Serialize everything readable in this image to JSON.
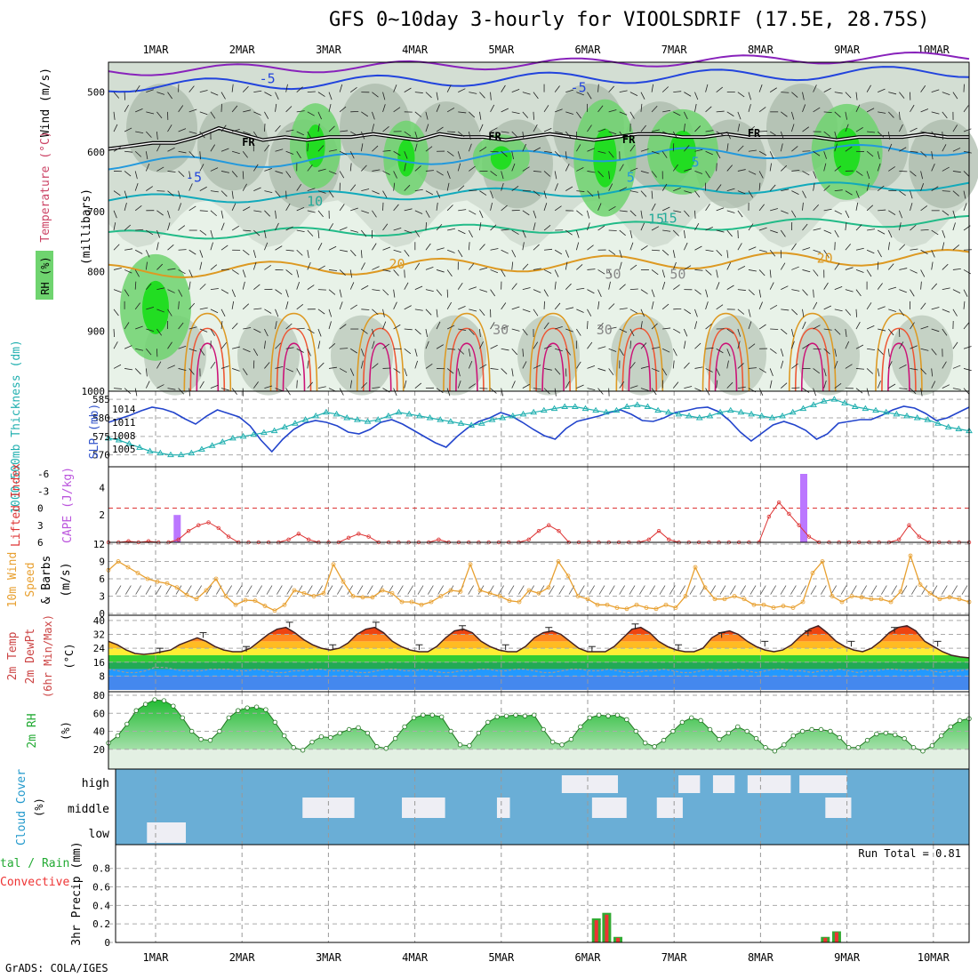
{
  "title": "GFS 0~10day 3-hourly for VIOOLSDRIF (17.5E, 28.75S)",
  "credit": "GrADS: COLA/IGES",
  "dates": [
    "1MAR",
    "2MAR",
    "3MAR",
    "4MAR",
    "5MAR",
    "6MAR",
    "7MAR",
    "8MAR",
    "9MAR",
    "10MAR"
  ],
  "colors": {
    "rh_dark": "#a8b8a8",
    "rh_mid": "#d0dcd0",
    "rh_light": "#e8f2e8",
    "rh_green": "#6fd46f",
    "rh_bright": "#22dd22",
    "slp": "#2244cc",
    "thickness": "#22b0b0",
    "cape": "#bb77ff",
    "lifted": "#dd3333",
    "wind": "#e8a030",
    "cloud_bg": "#6aaed6",
    "cloud_patch": "#eeeef4",
    "rain_total": "#33aa33",
    "rain_conv": "#ee3333"
  },
  "chart_data": [
    {
      "type": "heatmap",
      "name": "upper-air cross section",
      "ylabel": "(millibars)",
      "side_labels": [
        "Wind (m/s)",
        "Temperature (°C)",
        "RH (%)"
      ],
      "yticks": [
        500,
        600,
        700,
        800,
        900,
        1000
      ],
      "ylim": [
        450,
        1000
      ],
      "isotherm_labels": [
        "-5",
        "-5",
        "-5",
        "5",
        "5",
        "10",
        "15",
        "15",
        "20",
        "20",
        "FR",
        "FR",
        "FR",
        "FR",
        "30",
        "30",
        "50",
        "50"
      ],
      "freezing_level_mb": [
        595,
        590,
        585,
        585,
        575,
        560,
        570,
        580,
        575,
        580,
        575,
        575,
        570,
        575,
        580,
        570,
        575,
        575,
        580,
        575,
        570,
        575,
        580,
        575,
        570,
        570,
        575,
        575,
        570,
        575,
        575,
        575,
        575,
        580,
        575,
        575,
        575,
        570,
        575,
        575
      ]
    },
    {
      "type": "line",
      "ylabel_left": "1000-500mb Thickness (dm)",
      "ylabel_right": "SLP (mb)",
      "left_ticks": [
        570,
        575,
        580,
        585
      ],
      "right_ticks": [
        1005,
        1008,
        1011,
        1014
      ],
      "series": [
        {
          "name": "SLP",
          "axis": "right",
          "values": [
            1011,
            1011.8,
            1012.6,
            1013.6,
            1014.4,
            1014,
            1013.2,
            1011.8,
            1010.6,
            1012.4,
            1013.8,
            1013,
            1012.2,
            1010.2,
            1007,
            1004.4,
            1007.2,
            1009.4,
            1010.8,
            1011.4,
            1011,
            1010.2,
            1008.8,
            1008.4,
            1009.4,
            1011,
            1011.6,
            1010.6,
            1009.2,
            1007.8,
            1006.4,
            1005.4,
            1007.8,
            1009.8,
            1011.2,
            1012,
            1013.2,
            1012.4,
            1011,
            1009.4,
            1008,
            1007.2,
            1009.6,
            1011.2,
            1011.8,
            1012.4,
            1013.2,
            1013.8,
            1012.8,
            1011.4,
            1011.2,
            1012,
            1013.2,
            1013.6,
            1014.2,
            1014.4,
            1013.4,
            1011.4,
            1008.8,
            1006.8,
            1008.6,
            1010.4,
            1011.2,
            1010.4,
            1009.2,
            1007.2,
            1008.4,
            1010.8,
            1011.2,
            1011.6,
            1011.6,
            1012.6,
            1013.8,
            1014.6,
            1014.2,
            1013,
            1011.4,
            1012,
            1013.2,
            1014.4
          ]
        },
        {
          "name": "Thickness",
          "axis": "left",
          "values": [
            574.5,
            574,
            573,
            572,
            571,
            570.5,
            570,
            570,
            570.5,
            571.5,
            572.5,
            573.5,
            574.5,
            575,
            575.5,
            576,
            576.5,
            577.5,
            578.5,
            579.5,
            580.5,
            581.5,
            581,
            580,
            579.5,
            579,
            579.5,
            580.5,
            581.5,
            581,
            580.5,
            580,
            579.5,
            579,
            578.5,
            578,
            578.5,
            579.5,
            580,
            580.5,
            581,
            581.5,
            582,
            582.5,
            583,
            583,
            582.5,
            582,
            581.5,
            582,
            583,
            583.5,
            583,
            582,
            581.5,
            581,
            580.5,
            580,
            580.5,
            581.5,
            582,
            581.5,
            581,
            580.5,
            580,
            580.5,
            581.5,
            582.5,
            583.5,
            584.5,
            585,
            584,
            583,
            582.5,
            582,
            581.5,
            581,
            580.5,
            580,
            579.5,
            578.5,
            577.5,
            577,
            576.5
          ]
        }
      ]
    },
    {
      "type": "bar",
      "ylabel_left": "Lifted Index",
      "ylabel_right": "CAPE (J/kg)",
      "left_ticks": [
        -6,
        -3,
        0,
        3,
        6
      ],
      "right_ticks": [
        2,
        4
      ],
      "cape_events": [
        {
          "day": 1.25,
          "value": 2.0
        },
        {
          "day": 8.5,
          "value": 5.0
        }
      ],
      "lifted_index": [
        6,
        6,
        5.8,
        6,
        5.8,
        6,
        6,
        5.5,
        4,
        3,
        2.5,
        3.5,
        5,
        6,
        6,
        6,
        6,
        6,
        5.5,
        4.5,
        5.5,
        6,
        6,
        6,
        5.2,
        4.5,
        5,
        6,
        6,
        6,
        6,
        6,
        6,
        5.5,
        6,
        6,
        6,
        6,
        6,
        6,
        6,
        6,
        5.5,
        4,
        3,
        4,
        6,
        6,
        6,
        6,
        6,
        6,
        6,
        6,
        5.5,
        4,
        5.5,
        6,
        6,
        6,
        6,
        6,
        6,
        6,
        6,
        6,
        1.5,
        -1,
        1,
        3,
        5,
        6,
        6,
        6,
        6,
        6,
        6,
        6,
        6,
        5.5,
        3,
        5,
        6,
        6,
        6,
        6,
        6
      ]
    },
    {
      "type": "line",
      "ylabel": "10m Wind Speed (m/s) & Barbs",
      "ylim": [
        0,
        12
      ],
      "yticks": [
        0,
        3,
        6,
        9,
        12
      ],
      "series": [
        {
          "name": "10m Wind Speed",
          "values": [
            7.5,
            9,
            8,
            7,
            6,
            5.5,
            5.2,
            4.5,
            3.2,
            2.5,
            4,
            6,
            3,
            1.5,
            2.3,
            2.2,
            1.3,
            0.5,
            1.5,
            4,
            3.5,
            3,
            3.5,
            8.5,
            5.5,
            3,
            2.8,
            2.8,
            4,
            3.5,
            2,
            2,
            1.5,
            2,
            3,
            4,
            3.8,
            8.5,
            4,
            3.5,
            3,
            2.2,
            2,
            4,
            3.5,
            4.5,
            9,
            6.5,
            3,
            2.5,
            1.5,
            1.5,
            1,
            0.8,
            1.5,
            1,
            0.8,
            1.5,
            1,
            3,
            8,
            4.5,
            2.5,
            2.5,
            3,
            2.5,
            1.5,
            1.5,
            1,
            1.3,
            1,
            2,
            7,
            9,
            3,
            2,
            3,
            2.8,
            2.5,
            2.5,
            2,
            3.8,
            10,
            5,
            3.5,
            2.5,
            2.8,
            2.5,
            2
          ]
        }
      ]
    },
    {
      "type": "area",
      "ylabel": "2m Temp 2m DewPt (6hr Min/Max) (°C)",
      "ylim": [
        0,
        40
      ],
      "yticks": [
        8,
        16,
        24,
        32,
        40
      ],
      "series": [
        {
          "name": "2m Temp",
          "values": [
            28,
            26,
            23,
            21,
            20.5,
            21,
            22,
            23,
            26,
            28,
            30,
            28,
            25,
            23,
            22,
            22,
            24,
            28,
            32,
            35,
            36,
            33,
            29,
            26,
            24,
            23,
            24,
            27,
            32,
            35,
            36,
            33,
            28,
            25,
            23,
            22,
            22,
            25,
            30,
            34,
            35,
            33,
            28,
            25,
            23,
            22,
            22,
            25,
            30,
            33,
            34,
            32,
            28,
            24,
            22,
            22,
            22,
            25,
            30,
            35,
            36,
            33,
            28,
            25,
            23,
            22,
            22,
            24,
            30,
            33,
            34,
            32,
            28,
            25,
            23,
            22,
            23,
            26,
            31,
            35,
            37,
            33,
            28,
            25,
            23,
            22,
            24,
            28,
            33,
            36,
            37,
            34,
            28,
            25,
            22,
            20,
            19,
            18.5
          ]
        },
        {
          "name": "2m DewPt",
          "values": [
            12,
            11,
            10,
            10,
            11,
            13,
            13,
            12,
            11,
            11,
            11,
            12,
            12,
            12,
            11,
            11,
            12,
            11,
            10,
            10,
            11,
            11,
            12,
            12,
            11,
            11,
            11,
            10,
            10,
            11,
            12,
            12,
            11,
            11,
            12,
            11,
            10,
            10,
            11,
            11,
            12,
            12,
            11,
            11,
            12,
            12,
            11,
            10,
            10,
            11,
            12,
            12,
            11,
            11,
            12,
            11,
            10,
            10,
            11,
            11,
            12,
            11,
            10,
            10,
            11,
            12,
            11,
            11,
            12,
            11,
            10,
            11,
            12,
            12,
            11,
            11,
            10,
            11,
            11,
            12,
            11,
            10,
            11,
            11,
            12,
            12,
            11,
            11,
            12,
            11,
            10,
            11,
            11,
            12
          ]
        }
      ]
    },
    {
      "type": "area",
      "ylabel": "2m RH (%)",
      "ylim": [
        0,
        80
      ],
      "yticks": [
        20,
        40,
        60,
        80
      ],
      "series": [
        {
          "name": "2m RH",
          "values": [
            27,
            35,
            48,
            63,
            70,
            75,
            74,
            68,
            55,
            40,
            31,
            30,
            40,
            55,
            63,
            66,
            67,
            64,
            50,
            35,
            22,
            19,
            28,
            34,
            33,
            38,
            42,
            44,
            38,
            23,
            21,
            32,
            45,
            55,
            58,
            58,
            56,
            40,
            25,
            24,
            38,
            50,
            56,
            57,
            58,
            57,
            58,
            42,
            28,
            25,
            31,
            45,
            55,
            58,
            57,
            58,
            53,
            40,
            27,
            23,
            30,
            40,
            50,
            55,
            52,
            42,
            31,
            38,
            45,
            40,
            32,
            22,
            18,
            25,
            35,
            40,
            42,
            42,
            40,
            33,
            22,
            22,
            30,
            37,
            38,
            36,
            32,
            22,
            18,
            24,
            35,
            45,
            52,
            54
          ]
        }
      ]
    },
    {
      "type": "heatmap",
      "ylabel": "Cloud Cover (%)",
      "levels": [
        "high",
        "middle",
        "low"
      ],
      "patches": [
        {
          "level": "low",
          "start": 0.9,
          "end": 1.35
        },
        {
          "level": "middle",
          "start": 2.7,
          "end": 3.3
        },
        {
          "level": "middle",
          "start": 3.85,
          "end": 4.35
        },
        {
          "level": "middle",
          "start": 4.95,
          "end": 5.1
        },
        {
          "level": "high",
          "start": 5.7,
          "end": 6.35
        },
        {
          "level": "middle",
          "start": 6.05,
          "end": 6.45
        },
        {
          "level": "middle",
          "start": 6.8,
          "end": 7.1
        },
        {
          "level": "high",
          "start": 7.05,
          "end": 7.3
        },
        {
          "level": "high",
          "start": 7.45,
          "end": 7.7
        },
        {
          "level": "high",
          "start": 7.85,
          "end": 8.35
        },
        {
          "level": "high",
          "start": 8.45,
          "end": 9.0
        },
        {
          "level": "middle",
          "start": 8.75,
          "end": 9.05
        }
      ]
    },
    {
      "type": "bar",
      "ylabel_left": "Total / Rain Convective",
      "ylabel": "3hr Precip (mm)",
      "ylim": [
        0,
        1
      ],
      "yticks": [
        0,
        0.2,
        0.4,
        0.6,
        0.8
      ],
      "run_total_label": "Run Total = 0.81",
      "series": [
        {
          "name": "Total",
          "bars": [
            {
              "day": 6.1,
              "value": 0.26
            },
            {
              "day": 6.22,
              "value": 0.32
            },
            {
              "day": 6.35,
              "value": 0.06
            },
            {
              "day": 8.75,
              "value": 0.06
            },
            {
              "day": 8.88,
              "value": 0.12
            }
          ]
        },
        {
          "name": "Convective",
          "bars": [
            {
              "day": 6.1,
              "value": 0.24
            },
            {
              "day": 6.22,
              "value": 0.3
            },
            {
              "day": 6.35,
              "value": 0.05
            },
            {
              "day": 8.75,
              "value": 0.05
            },
            {
              "day": 8.88,
              "value": 0.11
            }
          ]
        }
      ]
    }
  ]
}
